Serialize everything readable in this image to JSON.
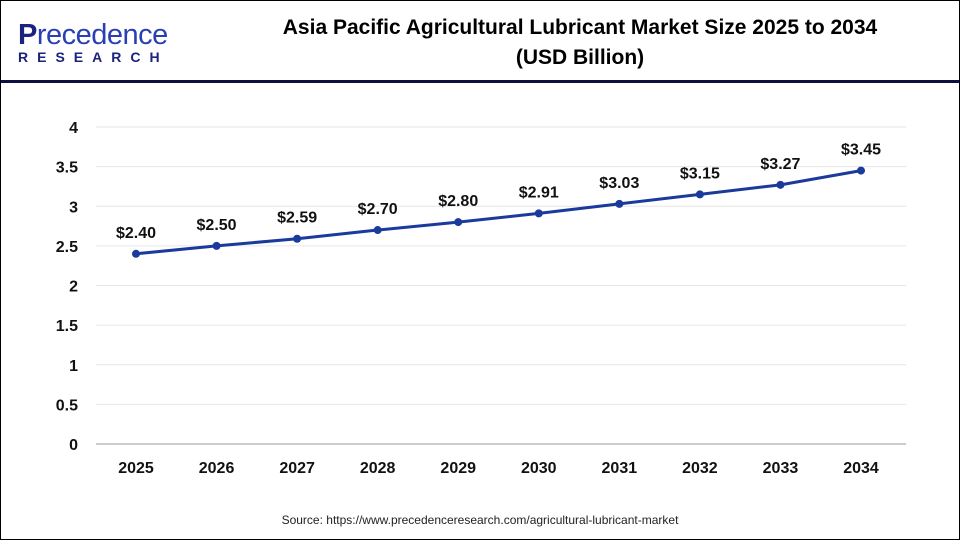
{
  "logo": {
    "main_first": "P",
    "main_rest": "recedence",
    "sub": "RESEARCH"
  },
  "title_line1": "Asia Pacific Agricultural Lubricant Market Size 2025 to 2034",
  "title_line2": "(USD Billion)",
  "source": "Source: https://www.precedenceresearch.com/agricultural-lubricant-market",
  "colors": {
    "line": "#1a3a9c",
    "divider": "#0d1040",
    "grid": "#e6e6e6"
  },
  "chart_data": {
    "type": "line",
    "title": "Asia Pacific Agricultural Lubricant Market Size 2025 to 2034 (USD Billion)",
    "categories": [
      "2025",
      "2026",
      "2027",
      "2028",
      "2029",
      "2030",
      "2031",
      "2032",
      "2033",
      "2034"
    ],
    "values": [
      2.4,
      2.5,
      2.59,
      2.7,
      2.8,
      2.91,
      3.03,
      3.15,
      3.27,
      3.45
    ],
    "data_labels": [
      "$2.40",
      "$2.50",
      "$2.59",
      "$2.70",
      "$2.80",
      "$2.91",
      "$3.03",
      "$3.15",
      "$3.27",
      "$3.45"
    ],
    "yticks": [
      "0",
      "0.5",
      "1",
      "1.5",
      "2",
      "2.5",
      "3",
      "3.5",
      "4"
    ],
    "ylim": [
      0,
      4
    ],
    "grid": true,
    "legend": "none"
  }
}
